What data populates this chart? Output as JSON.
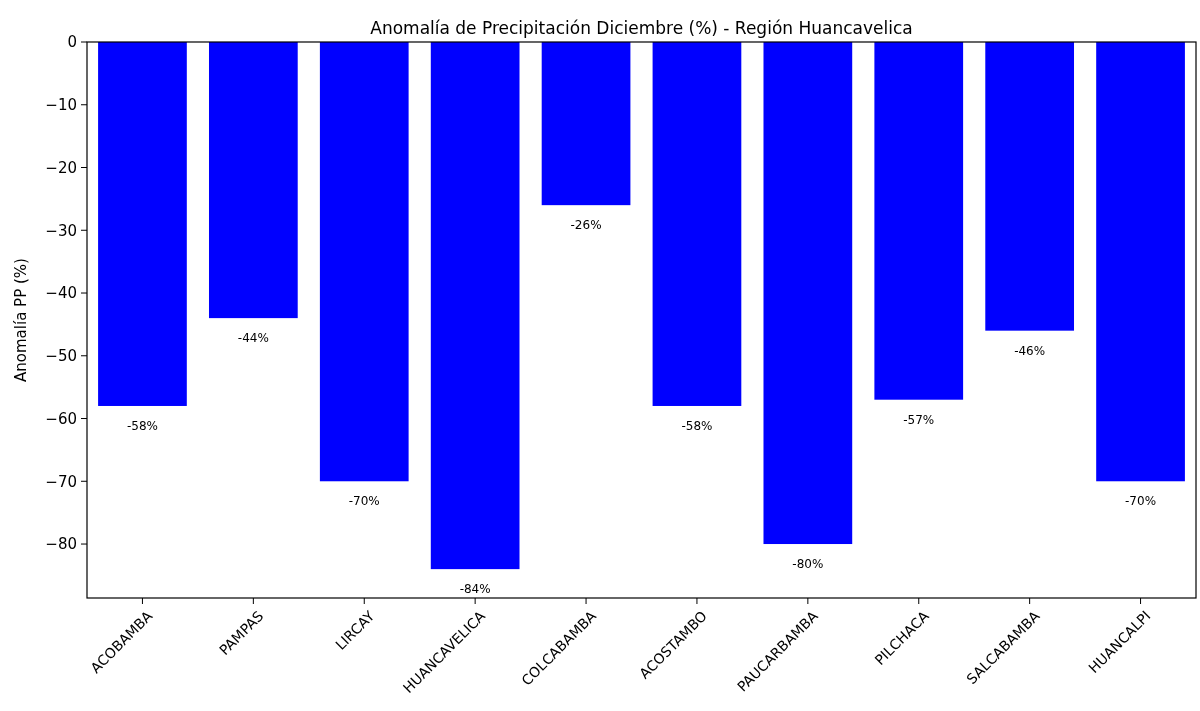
{
  "chart_data": {
    "type": "bar",
    "title": "Anomalía de Precipitación Diciembre (%) - Región Huancavelica",
    "ylabel": "Anomalía PP (%)",
    "categories": [
      "ACOBAMBA",
      "PAMPAS",
      "LIRCAY",
      "HUANCAVELICA",
      "COLCABAMBA",
      "ACOSTAMBO",
      "PAUCARBAMBA",
      "PILCHACA",
      "SALCABAMBA",
      "HUANCALPI"
    ],
    "values": [
      -58,
      -44,
      -70,
      -84,
      -26,
      -58,
      -80,
      -57,
      -46,
      -70
    ],
    "value_labels": [
      "-58%",
      "-44%",
      "-70%",
      "-84%",
      "-26%",
      "-58%",
      "-80%",
      "-57%",
      "-46%",
      "-70%"
    ],
    "color": "#0000ff",
    "ylim": [
      -88.6,
      0
    ],
    "yticks": [
      {
        "value": 0,
        "label": "0"
      },
      {
        "value": -10,
        "label": "−10"
      },
      {
        "value": -20,
        "label": "−20"
      },
      {
        "value": -30,
        "label": "−30"
      },
      {
        "value": -40,
        "label": "−40"
      },
      {
        "value": -50,
        "label": "−50"
      },
      {
        "value": -60,
        "label": "−60"
      },
      {
        "value": -70,
        "label": "−70"
      },
      {
        "value": -80,
        "label": "−80"
      }
    ],
    "grid": false
  }
}
